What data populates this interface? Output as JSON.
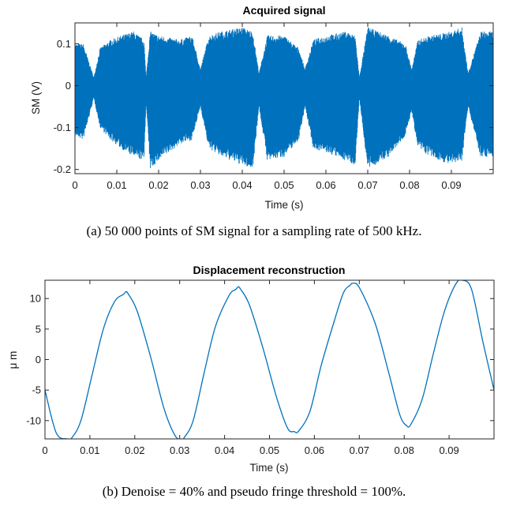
{
  "chart_data": [
    {
      "type": "line",
      "title": "Acquired signal",
      "xlabel": "Time (s)",
      "ylabel": "SM (V)",
      "xlim": [
        0,
        0.1
      ],
      "ylim": [
        -0.21,
        0.15
      ],
      "xticks": [
        0,
        0.01,
        0.02,
        0.03,
        0.04,
        0.05,
        0.06,
        0.07,
        0.08,
        0.09
      ],
      "xtick_labels": [
        "0",
        "0.01",
        "0.02",
        "0.03",
        "0.04",
        "0.05",
        "0.06",
        "0.07",
        "0.08",
        "0.09"
      ],
      "yticks": [
        0.1,
        0,
        -0.1,
        -0.2
      ],
      "ytick_labels": [
        "0.1",
        "0",
        "-0.1",
        "-0.2"
      ],
      "points": 50000,
      "sampling_rate_hz": 500000,
      "envelope": {
        "x": [
          0,
          0.002,
          0.0045,
          0.006,
          0.0085,
          0.011,
          0.014,
          0.0165,
          0.017,
          0.018,
          0.02,
          0.025,
          0.028,
          0.03,
          0.032,
          0.035,
          0.04,
          0.0425,
          0.044,
          0.046,
          0.05,
          0.0535,
          0.055,
          0.057,
          0.06,
          0.065,
          0.067,
          0.068,
          0.07,
          0.075,
          0.079,
          0.0805,
          0.082,
          0.085,
          0.09,
          0.0925,
          0.094,
          0.097,
          0.1
        ],
        "upper": [
          0.1,
          0.1,
          0.02,
          0.09,
          0.11,
          0.12,
          0.13,
          0.11,
          0.02,
          0.13,
          0.12,
          0.11,
          0.12,
          0.04,
          0.12,
          0.13,
          0.14,
          0.13,
          0.03,
          0.12,
          0.12,
          0.09,
          0.04,
          0.11,
          0.12,
          0.13,
          0.12,
          0.02,
          0.14,
          0.12,
          0.1,
          0.04,
          0.11,
          0.12,
          0.13,
          0.14,
          0.03,
          0.13,
          0.13
        ],
        "lower": [
          -0.12,
          -0.13,
          -0.03,
          -0.1,
          -0.13,
          -0.15,
          -0.17,
          -0.18,
          -0.04,
          -0.2,
          -0.18,
          -0.14,
          -0.13,
          -0.05,
          -0.15,
          -0.17,
          -0.19,
          -0.2,
          -0.05,
          -0.18,
          -0.17,
          -0.13,
          -0.05,
          -0.15,
          -0.16,
          -0.18,
          -0.19,
          -0.03,
          -0.2,
          -0.17,
          -0.12,
          -0.06,
          -0.15,
          -0.17,
          -0.19,
          -0.18,
          -0.05,
          -0.17,
          -0.17
        ]
      },
      "color": "#0072bd"
    },
    {
      "type": "line",
      "title": "Displacement reconstruction",
      "xlabel": "Time (s)",
      "ylabel": "μ m",
      "xlim": [
        0,
        0.1
      ],
      "ylim": [
        -13,
        13
      ],
      "xticks": [
        0,
        0.01,
        0.02,
        0.03,
        0.04,
        0.05,
        0.06,
        0.07,
        0.08,
        0.09
      ],
      "xtick_labels": [
        "0",
        "0.01",
        "0.02",
        "0.03",
        "0.04",
        "0.05",
        "0.06",
        "0.07",
        "0.08",
        "0.09"
      ],
      "yticks": [
        10,
        5,
        0,
        -5,
        -10
      ],
      "ytick_labels": [
        "10",
        "5",
        "0",
        "-5",
        "-10"
      ],
      "x": [
        0,
        0.0025,
        0.005,
        0.006,
        0.008,
        0.0105,
        0.013,
        0.0155,
        0.0175,
        0.018,
        0.0185,
        0.0205,
        0.0235,
        0.0265,
        0.029,
        0.0305,
        0.031,
        0.033,
        0.0355,
        0.038,
        0.041,
        0.0425,
        0.043,
        0.0435,
        0.0455,
        0.0485,
        0.0515,
        0.054,
        0.0555,
        0.0565,
        0.059,
        0.0615,
        0.0645,
        0.0665,
        0.068,
        0.0685,
        0.07,
        0.0735,
        0.0765,
        0.079,
        0.0805,
        0.0815,
        0.084,
        0.0865,
        0.089,
        0.0915,
        0.093,
        0.095,
        0.0975,
        0.1
      ],
      "y": [
        -5,
        -12,
        -13,
        -12.8,
        -10,
        -2.5,
        5,
        9.5,
        10.7,
        11.1,
        10.8,
        8,
        0.5,
        -8,
        -12.5,
        -13,
        -12.8,
        -10,
        -2,
        5.5,
        10.5,
        11.5,
        11.9,
        11.6,
        9,
        2,
        -6,
        -11.2,
        -11.8,
        -11.7,
        -8.5,
        -1,
        6.5,
        11,
        12.2,
        12.5,
        11.8,
        6,
        -2,
        -9,
        -10.8,
        -10.6,
        -6.5,
        1,
        8,
        12.4,
        13,
        11.5,
        3,
        -5
      ],
      "color": "#0072bd"
    }
  ],
  "captions": {
    "a": "(a) 50 000 points of SM signal for a sampling rate of 500 kHz.",
    "b": "(b) Denoise = 40% and pseudo fringe threshold = 100%."
  }
}
